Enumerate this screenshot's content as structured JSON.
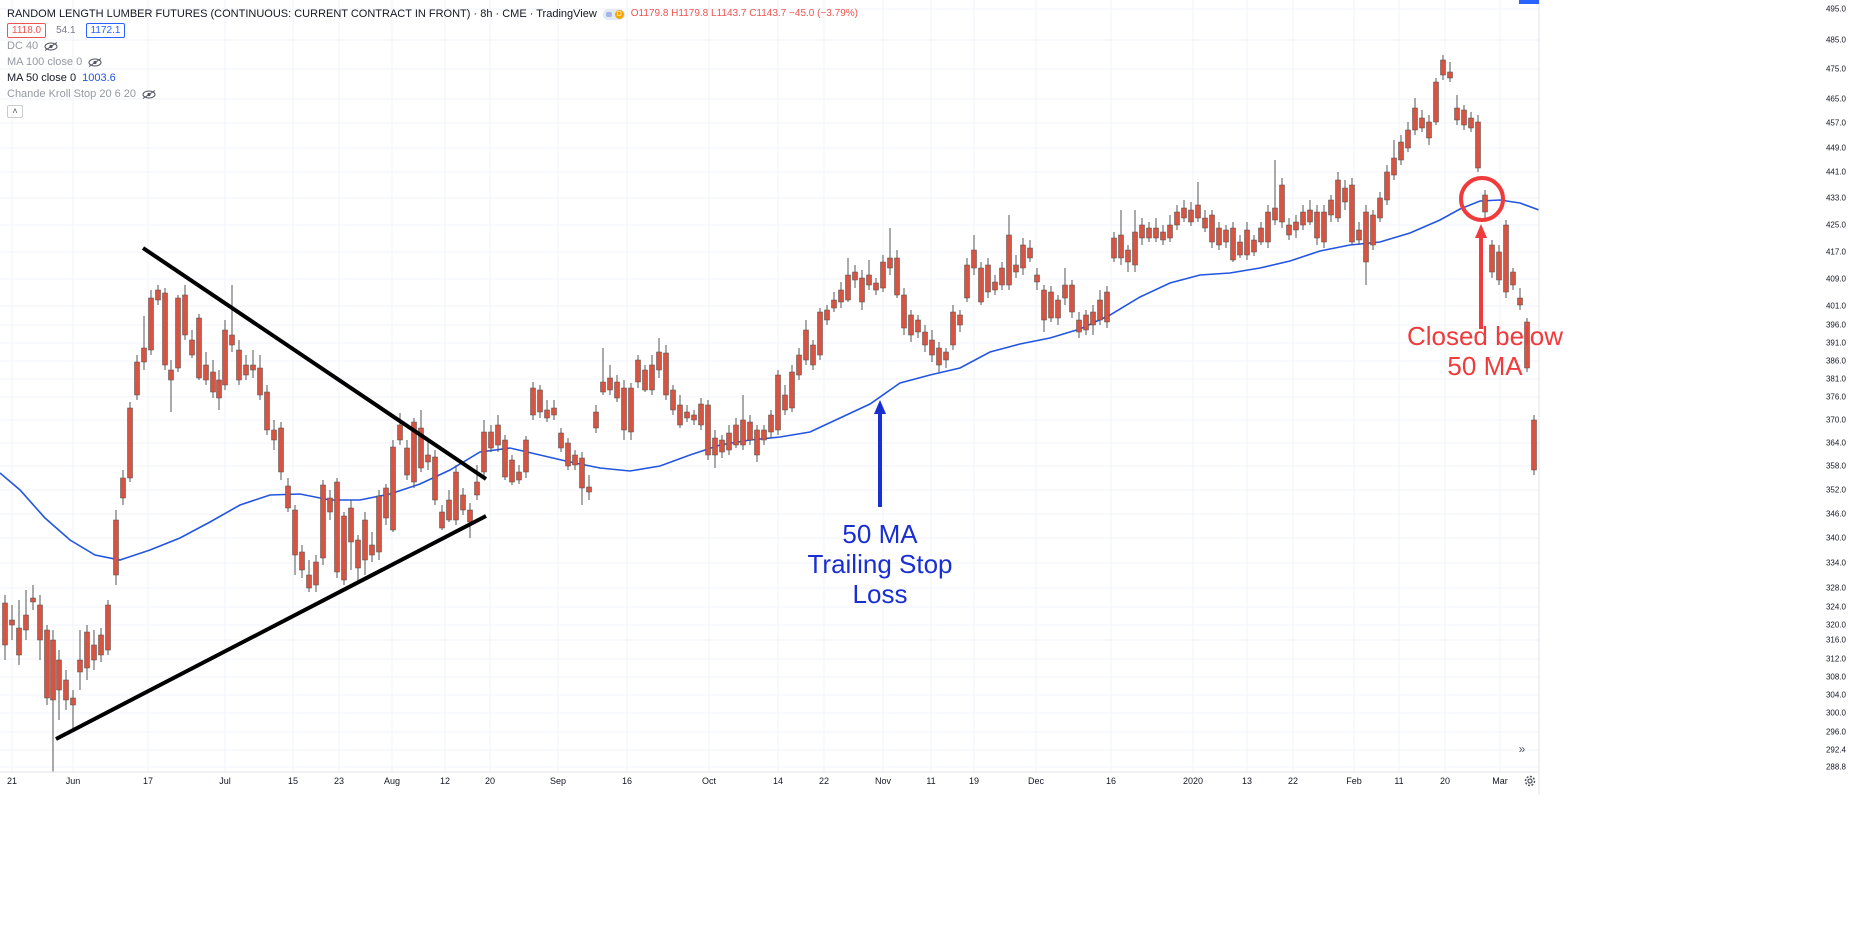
{
  "header": {
    "symbol": "RANDOM LENGTH LUMBER FUTURES (CONTINUOUS: CURRENT CONTRACT IN FRONT) · 8h · CME · TradingView",
    "ohlc": "O1179.8 H1179.8 L1143.7 C1143.7 −45.0 (−3.79%)",
    "bid": "1118.0",
    "spread": "54.1",
    "ask": "1172.1",
    "indicators": [
      {
        "label": "DC 40",
        "value": ""
      },
      {
        "label": "MA 100 close 0",
        "value": ""
      },
      {
        "label": "MA 50 close 0",
        "value": "1003.6"
      },
      {
        "label": "Chande Kroll Stop 20 6 20",
        "value": ""
      }
    ]
  },
  "colors": {
    "up": "#6ba583",
    "down": "#d75442",
    "ma": "#2255e0",
    "annotation_blue": "#1a2fd1",
    "annotation_red": "#ef3b3b",
    "trendline": "#000000"
  },
  "y_axis_labels": [
    "495.0",
    "485.0",
    "475.0",
    "465.0",
    "457.0",
    "449.0",
    "441.0",
    "433.0",
    "425.0",
    "417.0",
    "409.0",
    "401.0",
    "396.0",
    "391.0",
    "386.0",
    "381.0",
    "376.0",
    "370.0",
    "364.0",
    "358.0",
    "352.0",
    "346.0",
    "340.0",
    "334.0",
    "328.0",
    "324.0",
    "320.0",
    "316.0",
    "312.0",
    "308.0",
    "304.0",
    "300.0",
    "296.0",
    "292.4",
    "288.8"
  ],
  "x_axis_labels": [
    "21",
    "Jun",
    "17",
    "Jul",
    "15",
    "23",
    "Aug",
    "12",
    "20",
    "Sep",
    "16",
    "Oct",
    "14",
    "22",
    "Nov",
    "11",
    "19",
    "Dec",
    "16",
    "2020",
    "13",
    "22",
    "Feb",
    "11",
    "20",
    "Mar"
  ],
  "annotations": {
    "ma_note": [
      "50 MA",
      "Trailing Stop",
      "Loss"
    ],
    "exit_note": [
      "Closed below",
      "50 MA"
    ]
  },
  "icons": [
    "eye-icon",
    "chevron-up-icon",
    "chevron-double-right-icon",
    "gear-icon"
  ]
}
